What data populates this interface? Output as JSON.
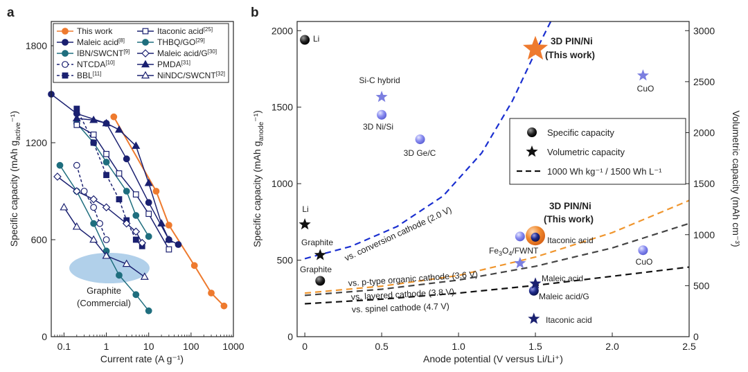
{
  "chart_data": [
    {
      "panel": "a",
      "type": "line",
      "xscale": "log",
      "xlabel": "Current rate (A g⁻¹)",
      "ylabel": "Specific capacity (mAh g",
      "ylabel_sub": "active",
      "ylabel_tail": "⁻¹)",
      "xlim": [
        0.05,
        1000
      ],
      "ylim": [
        0,
        1950
      ],
      "xticks": [
        0.1,
        1,
        10,
        100,
        1000
      ],
      "xtick_labels": [
        "0.1",
        "1",
        "10",
        "100",
        "1000"
      ],
      "yticks": [
        0,
        600,
        1200,
        1800
      ],
      "ytick_labels": [
        "0",
        "600",
        "1200",
        "1800"
      ],
      "series": [
        {
          "name": "This work",
          "ref": "",
          "color": "#ee7a2e",
          "marker": "circle",
          "filled": true,
          "dash": false,
          "points": [
            [
              1.5,
              1360
            ],
            [
              15,
              900
            ],
            [
              30,
              690
            ],
            [
              120,
              440
            ],
            [
              300,
              270
            ],
            [
              600,
              190
            ]
          ]
        },
        {
          "name": "Maleic acid",
          "ref": "[8]",
          "color": "#1a2070",
          "marker": "circle",
          "filled": true,
          "dash": false,
          "points": [
            [
              0.05,
              1500
            ],
            [
              0.2,
              1380
            ],
            [
              1,
              1320
            ],
            [
              3,
              1100
            ],
            [
              10,
              830
            ],
            [
              30,
              600
            ],
            [
              50,
              570
            ]
          ]
        },
        {
          "name": "IBN/SWCNT",
          "ref": "[9]",
          "color": "#1f6e7e",
          "marker": "circle",
          "filled": true,
          "dash": false,
          "points": [
            [
              0.2,
              1320
            ],
            [
              0.5,
              1200
            ],
            [
              1,
              1080
            ],
            [
              3,
              900
            ],
            [
              5,
              750
            ],
            [
              10,
              620
            ]
          ]
        },
        {
          "name": "NTCDA",
          "ref": "[10]",
          "color": "#1a2070",
          "marker": "circle",
          "filled": false,
          "dash": true,
          "points": [
            [
              0.2,
              1060
            ],
            [
              0.3,
              900
            ],
            [
              0.5,
              800
            ],
            [
              0.7,
              700
            ],
            [
              1,
              600
            ]
          ]
        },
        {
          "name": "BBL",
          "ref": "[11]",
          "color": "#1a2070",
          "marker": "square",
          "filled": true,
          "dash": true,
          "points": [
            [
              0.2,
              1410
            ],
            [
              0.5,
              1200
            ],
            [
              1,
              1000
            ],
            [
              2,
              850
            ],
            [
              3,
              720
            ],
            [
              5,
              600
            ],
            [
              7,
              560
            ]
          ]
        },
        {
          "name": "Itaconic acid",
          "ref": "[25]",
          "color": "#1a2070",
          "marker": "square",
          "filled": false,
          "dash": false,
          "points": [
            [
              0.2,
              1310
            ],
            [
              0.5,
              1250
            ],
            [
              1,
              1130
            ],
            [
              2,
              1010
            ],
            [
              5,
              880
            ],
            [
              10,
              760
            ],
            [
              30,
              540
            ]
          ]
        },
        {
          "name": "THBQ/GO",
          "ref": "[29]",
          "color": "#1f6e7e",
          "marker": "circle",
          "filled": true,
          "dash": false,
          "points": [
            [
              0.08,
              1060
            ],
            [
              0.2,
              900
            ],
            [
              0.5,
              700
            ],
            [
              1,
              530
            ],
            [
              2,
              380
            ],
            [
              5,
              260
            ],
            [
              10,
              160
            ]
          ]
        },
        {
          "name": "Maleic acid/G",
          "ref": "[30]",
          "color": "#1a2070",
          "marker": "diamond",
          "filled": false,
          "dash": false,
          "points": [
            [
              0.07,
              990
            ],
            [
              0.2,
              900
            ],
            [
              0.5,
              850
            ],
            [
              1,
              800
            ],
            [
              3,
              700
            ],
            [
              5,
              650
            ],
            [
              7,
              580
            ]
          ]
        },
        {
          "name": "PMDA",
          "ref": "[31]",
          "color": "#1a2070",
          "marker": "triangle",
          "filled": true,
          "dash": false,
          "points": [
            [
              0.2,
              1350
            ],
            [
              0.5,
              1340
            ],
            [
              1,
              1320
            ],
            [
              2,
              1280
            ],
            [
              5,
              1180
            ],
            [
              10,
              950
            ],
            [
              20,
              700
            ],
            [
              30,
              600
            ]
          ]
        },
        {
          "name": "NiNDC/SWCNT",
          "ref": "[32]",
          "color": "#1a2070",
          "marker": "triangle",
          "filled": false,
          "dash": false,
          "points": [
            [
              0.1,
              800
            ],
            [
              0.2,
              680
            ],
            [
              0.5,
              600
            ],
            [
              1,
              500
            ],
            [
              3,
              450
            ],
            [
              8,
              370
            ]
          ]
        }
      ],
      "annotation": {
        "line1": "Graphite",
        "line2": "(Commercial)",
        "region_color": "#a9cbe8"
      }
    },
    {
      "panel": "b",
      "type": "scatter",
      "xlabel": "Anode potential (V versus Li/Li⁺)",
      "ylabel": "Specific capacity (mAh g",
      "ylabel_sub": "anode",
      "ylabel_tail": "⁻¹)",
      "ylabel_right": "Volumetric capacity (mAh cm⁻³)",
      "xlim": [
        -0.05,
        2.5
      ],
      "ylim": [
        0,
        2060
      ],
      "ylim_right": [
        0,
        3090
      ],
      "xticks": [
        0,
        0.5,
        1.0,
        1.5,
        2.0,
        2.5
      ],
      "xtick_labels": [
        "0",
        "0.5",
        "1.0",
        "1.5",
        "2.0",
        "2.5"
      ],
      "yticks": [
        0,
        500,
        1000,
        1500,
        2000
      ],
      "ytick_labels": [
        "0",
        "500",
        "1000",
        "1500",
        "2000"
      ],
      "yticks_right": [
        0,
        500,
        1000,
        1500,
        2000,
        2500,
        3000
      ],
      "ytick_labels_right": [
        "0",
        "500",
        "1000",
        "1500",
        "2000",
        "2500",
        "3000"
      ],
      "specific_capacity": [
        {
          "label": "Li",
          "x": 0.0,
          "y": 1940,
          "color": "#111111"
        },
        {
          "label": "3D Ni/Si",
          "x": 0.5,
          "y": 1450,
          "color": "#7b7fe0"
        },
        {
          "label": "3D Ge/C",
          "x": 0.75,
          "y": 1290,
          "color": "#7b7fe0"
        },
        {
          "label": "Graphite",
          "x": 0.1,
          "y": 365,
          "color": "#111111"
        },
        {
          "label": "",
          "x": 1.4,
          "y": 655,
          "color": "#7b7fe0"
        },
        {
          "label": "Itaconic acid",
          "x": 1.5,
          "y": 650,
          "color": "#1a2070"
        },
        {
          "label": "Maleic acid/G",
          "x": 1.49,
          "y": 300,
          "color": "#1a2070"
        },
        {
          "label": "CuO",
          "x": 2.2,
          "y": 565,
          "color": "#7b7fe0"
        }
      ],
      "volumetric_capacity": [
        {
          "label": "Li",
          "x": 0.0,
          "y": 1100,
          "color": "#111111"
        },
        {
          "label": "Graphite",
          "x": 0.1,
          "y": 800,
          "color": "#111111"
        },
        {
          "label": "Si-C hybrid",
          "x": 0.5,
          "y": 2350,
          "color": "#7b7fe0"
        },
        {
          "label": "CuO",
          "x": 2.2,
          "y": 2560,
          "color": "#7b7fe0"
        },
        {
          "label": "Fe3O4/FWNT",
          "x": 1.4,
          "y": 720,
          "color": "#7b7fe0"
        },
        {
          "label": "Maleic acid",
          "x": 1.5,
          "y": 520,
          "color": "#1a2070"
        },
        {
          "label": "Itaconic acid",
          "x": 1.49,
          "y": 175,
          "color": "#1a2070"
        }
      ],
      "this_work": {
        "line1": "3D PIN/Ni",
        "line2": "(This work)",
        "color": "#ee7a2e",
        "volumetric": {
          "x": 1.5,
          "y": 2820
        },
        "specific": {
          "x": 1.5,
          "y": 660
        }
      },
      "curves": [
        {
          "label": "vs. conversion cathode (2.0 V)",
          "color": "#1a2fd0",
          "points": [
            [
              0,
              510
            ],
            [
              0.3,
              590
            ],
            [
              0.6,
              720
            ],
            [
              0.9,
              920
            ],
            [
              1.15,
              1200
            ],
            [
              1.35,
              1540
            ],
            [
              1.5,
              1860
            ],
            [
              1.6,
              2160
            ]
          ]
        },
        {
          "label": "vs. p-type organic cathode (3.6 V)",
          "color": "#f0962e",
          "points": [
            [
              0,
              285
            ],
            [
              0.5,
              330
            ],
            [
              1.0,
              400
            ],
            [
              1.5,
              520
            ],
            [
              2.0,
              680
            ],
            [
              2.5,
              890
            ]
          ]
        },
        {
          "label": "vs. layered cathode (3.8 V)",
          "color": "#444444",
          "points": [
            [
              0,
              270
            ],
            [
              0.5,
              310
            ],
            [
              1.0,
              370
            ],
            [
              1.5,
              460
            ],
            [
              2.0,
              580
            ],
            [
              2.5,
              740
            ]
          ]
        },
        {
          "label": "vs. spinel cathode (4.7 V)",
          "color": "#111111",
          "points": [
            [
              0,
              215
            ],
            [
              0.5,
              245
            ],
            [
              1.0,
              285
            ],
            [
              1.5,
              335
            ],
            [
              2.0,
              395
            ],
            [
              2.5,
              455
            ]
          ]
        }
      ],
      "legend": {
        "specific": "Specific capacity",
        "volumetric": "Volumetric capacity",
        "energy": "1000 Wh kg⁻¹ / 1500 Wh L⁻¹"
      }
    }
  ]
}
